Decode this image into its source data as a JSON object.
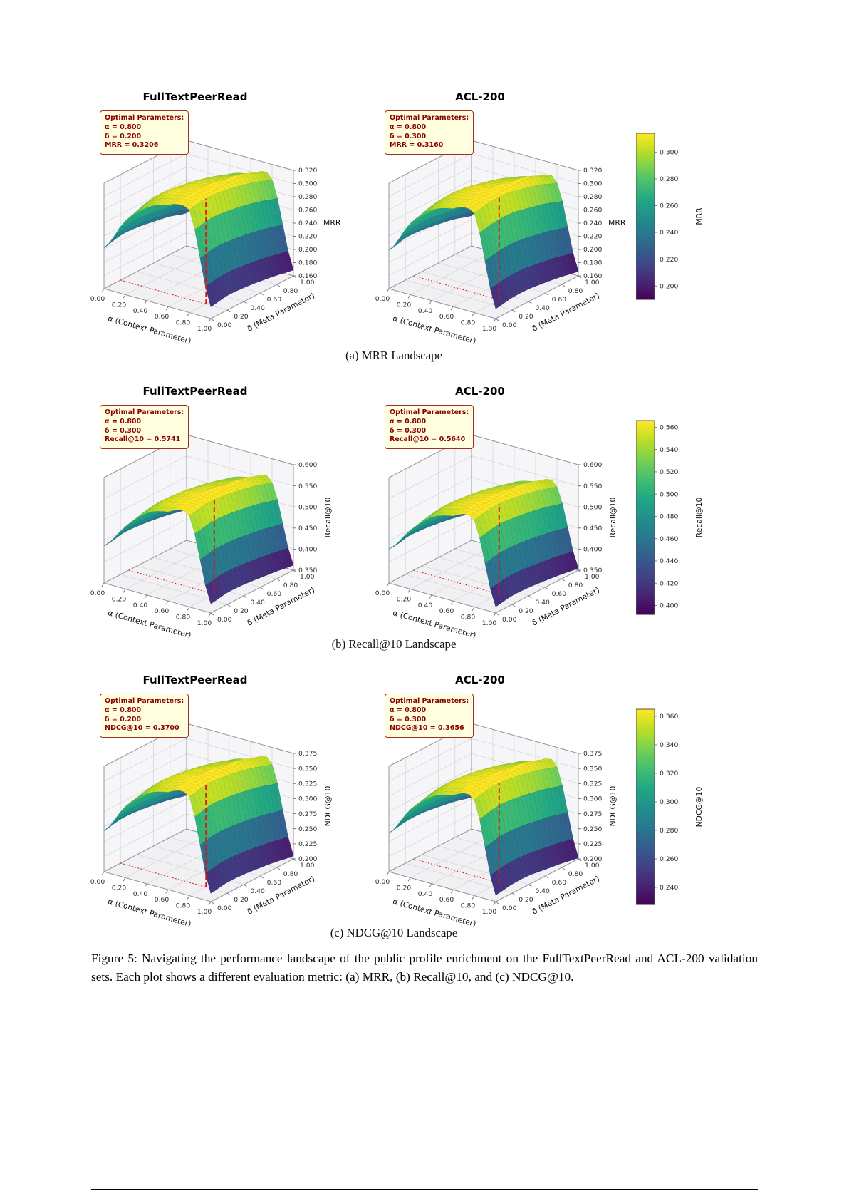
{
  "figure_caption": "Figure 5: Navigating the performance landscape of the public profile enrichment on the FullTextPeerRead and ACL-200 validation sets. Each plot shows a different evaluation metric: (a) MRR, (b) Recall@10, and (c) NDCG@10.",
  "chart_data": {
    "type": "surface",
    "colormap": "viridis",
    "x_label": "α (Context Parameter)",
    "y_label": "δ (Meta Parameter)",
    "x_ticks": [
      "0.00",
      "0.20",
      "0.40",
      "0.60",
      "0.80",
      "1.00"
    ],
    "y_ticks": [
      "0.00",
      "0.20",
      "0.40",
      "0.60",
      "0.80",
      "1.00"
    ],
    "alpha_values": [
      0.0,
      0.2,
      0.4,
      0.6,
      0.8,
      1.0
    ],
    "delta_values": [
      0.0,
      0.2,
      0.4,
      0.6,
      0.8,
      1.0
    ],
    "rows": [
      {
        "row_id": "a",
        "metric": "MRR",
        "caption": "(a) MRR Landscape",
        "z_ticks": [
          "0.160",
          "0.180",
          "0.200",
          "0.220",
          "0.240",
          "0.260",
          "0.280",
          "0.300",
          "0.320"
        ],
        "colorbar": {
          "label": "MRR",
          "vmin": 0.19,
          "vmax": 0.314,
          "ticks": [
            "0.300",
            "0.280",
            "0.260",
            "0.240",
            "0.220",
            "0.200"
          ]
        },
        "plots": [
          {
            "title": "FullTextPeerRead",
            "annotation_header": "Optimal Parameters:",
            "annotation_lines": [
              "α = 0.800",
              "δ = 0.200",
              "MRR = 0.3206"
            ],
            "optimal": {
              "alpha": 0.8,
              "delta": 0.2,
              "value": 0.3206
            },
            "surface": [
              [
                0.222,
                0.272,
                0.302,
                0.314,
                0.316,
                0.178
              ],
              [
                0.228,
                0.28,
                0.31,
                0.319,
                0.3206,
                0.182
              ],
              [
                0.227,
                0.279,
                0.308,
                0.317,
                0.318,
                0.181
              ],
              [
                0.223,
                0.274,
                0.303,
                0.312,
                0.313,
                0.178
              ],
              [
                0.218,
                0.268,
                0.296,
                0.305,
                0.306,
                0.174
              ],
              [
                0.21,
                0.259,
                0.287,
                0.296,
                0.297,
                0.169
              ]
            ]
          },
          {
            "title": "ACL-200",
            "annotation_header": "Optimal Parameters:",
            "annotation_lines": [
              "α = 0.800",
              "δ = 0.300",
              "MRR = 0.3160"
            ],
            "optimal": {
              "alpha": 0.8,
              "delta": 0.3,
              "value": 0.316
            },
            "surface": [
              [
                0.218,
                0.268,
                0.298,
                0.309,
                0.311,
                0.175
              ],
              [
                0.224,
                0.275,
                0.305,
                0.314,
                0.3158,
                0.179
              ],
              [
                0.223,
                0.275,
                0.305,
                0.314,
                0.3155,
                0.179
              ],
              [
                0.219,
                0.27,
                0.299,
                0.308,
                0.309,
                0.176
              ],
              [
                0.214,
                0.263,
                0.292,
                0.301,
                0.302,
                0.172
              ],
              [
                0.206,
                0.254,
                0.282,
                0.291,
                0.292,
                0.167
              ]
            ]
          }
        ]
      },
      {
        "row_id": "b",
        "metric": "Recall@10",
        "caption": "(b) Recall@10 Landscape",
        "z_ticks": [
          "0.350",
          "0.400",
          "0.450",
          "0.500",
          "0.550",
          "0.600"
        ],
        "colorbar": {
          "label": "Recall@10",
          "vmin": 0.392,
          "vmax": 0.566,
          "ticks": [
            "0.560",
            "0.540",
            "0.520",
            "0.500",
            "0.480",
            "0.460",
            "0.440",
            "0.420",
            "0.400"
          ]
        },
        "plots": [
          {
            "title": "FullTextPeerRead",
            "annotation_header": "Optimal Parameters:",
            "annotation_lines": [
              "α = 0.800",
              "δ = 0.300",
              "Recall@10 = 0.5741"
            ],
            "optimal": {
              "alpha": 0.8,
              "delta": 0.3,
              "value": 0.5741
            },
            "surface": [
              [
                0.438,
                0.498,
                0.545,
                0.562,
                0.566,
                0.372
              ],
              [
                0.445,
                0.507,
                0.554,
                0.571,
                0.5741,
                0.378
              ],
              [
                0.444,
                0.506,
                0.552,
                0.569,
                0.572,
                0.377
              ],
              [
                0.439,
                0.5,
                0.546,
                0.562,
                0.565,
                0.373
              ],
              [
                0.432,
                0.492,
                0.537,
                0.553,
                0.556,
                0.368
              ],
              [
                0.423,
                0.482,
                0.526,
                0.541,
                0.544,
                0.362
              ]
            ]
          },
          {
            "title": "ACL-200",
            "annotation_header": "Optimal Parameters:",
            "annotation_lines": [
              "α = 0.800",
              "δ = 0.300",
              "Recall@10 = 0.5640"
            ],
            "optimal": {
              "alpha": 0.8,
              "delta": 0.3,
              "value": 0.564
            },
            "surface": [
              [
                0.43,
                0.489,
                0.535,
                0.552,
                0.556,
                0.365
              ],
              [
                0.437,
                0.498,
                0.544,
                0.561,
                0.564,
                0.371
              ],
              [
                0.436,
                0.497,
                0.542,
                0.559,
                0.562,
                0.37
              ],
              [
                0.431,
                0.491,
                0.536,
                0.552,
                0.555,
                0.366
              ],
              [
                0.424,
                0.483,
                0.527,
                0.543,
                0.546,
                0.361
              ],
              [
                0.415,
                0.473,
                0.516,
                0.531,
                0.534,
                0.355
              ]
            ]
          }
        ]
      },
      {
        "row_id": "c",
        "metric": "NDCG@10",
        "caption": "(c) NDCG@10 Landscape",
        "z_ticks": [
          "0.200",
          "0.225",
          "0.250",
          "0.275",
          "0.300",
          "0.325",
          "0.350",
          "0.375"
        ],
        "colorbar": {
          "label": "NDCG@10",
          "vmin": 0.228,
          "vmax": 0.365,
          "ticks": [
            "0.360",
            "0.340",
            "0.320",
            "0.300",
            "0.280",
            "0.260",
            "0.240"
          ]
        },
        "plots": [
          {
            "title": "FullTextPeerRead",
            "annotation_header": "Optimal Parameters:",
            "annotation_lines": [
              "α = 0.800",
              "δ = 0.200",
              "NDCG@10 = 0.3700"
            ],
            "optimal": {
              "alpha": 0.8,
              "delta": 0.2,
              "value": 0.37
            },
            "surface": [
              [
                0.268,
                0.318,
                0.35,
                0.362,
                0.364,
                0.214
              ],
              [
                0.273,
                0.324,
                0.357,
                0.368,
                0.37,
                0.218
              ],
              [
                0.272,
                0.323,
                0.355,
                0.366,
                0.368,
                0.217
              ],
              [
                0.268,
                0.318,
                0.35,
                0.361,
                0.363,
                0.214
              ],
              [
                0.263,
                0.312,
                0.343,
                0.354,
                0.356,
                0.21
              ],
              [
                0.256,
                0.303,
                0.334,
                0.345,
                0.347,
                0.205
              ]
            ]
          },
          {
            "title": "ACL-200",
            "annotation_header": "Optimal Parameters:",
            "annotation_lines": [
              "α = 0.800",
              "δ = 0.300",
              "NDCG@10 = 0.3656"
            ],
            "optimal": {
              "alpha": 0.8,
              "delta": 0.3,
              "value": 0.3656
            },
            "surface": [
              [
                0.264,
                0.313,
                0.345,
                0.357,
                0.359,
                0.211
              ],
              [
                0.269,
                0.319,
                0.352,
                0.363,
                0.3656,
                0.215
              ],
              [
                0.269,
                0.319,
                0.351,
                0.362,
                0.364,
                0.215
              ],
              [
                0.265,
                0.314,
                0.346,
                0.357,
                0.359,
                0.211
              ],
              [
                0.26,
                0.308,
                0.339,
                0.35,
                0.352,
                0.207
              ],
              [
                0.253,
                0.299,
                0.33,
                0.341,
                0.343,
                0.202
              ]
            ]
          }
        ]
      }
    ]
  }
}
